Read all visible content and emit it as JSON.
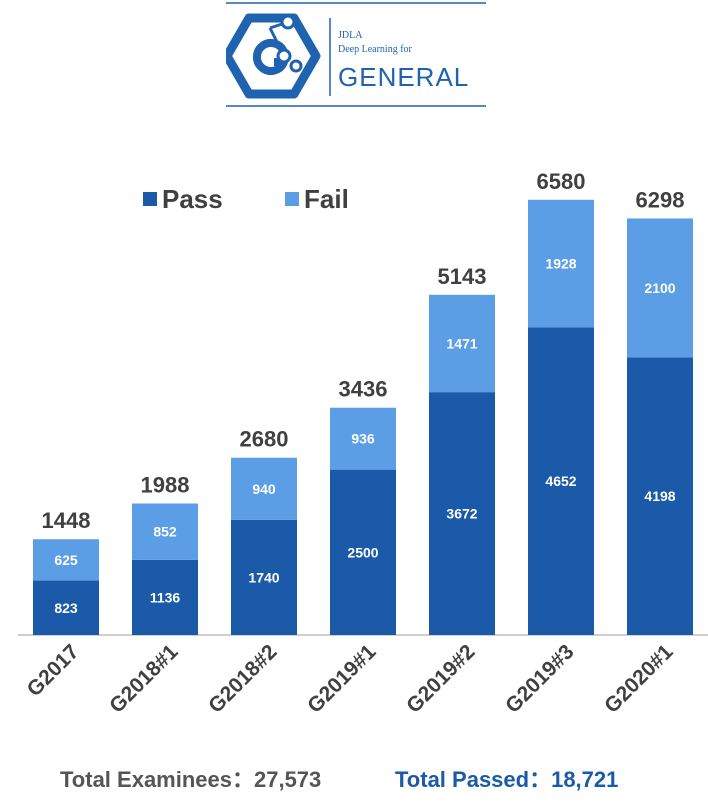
{
  "logo": {
    "line1": "JDLA",
    "line2": "Deep Learning for",
    "line3": "GENERAL",
    "icon": "hexagon-g-network-logo"
  },
  "colors": {
    "pass": "#1a5aa8",
    "fail": "#5b9ee6",
    "total_label": "#404040",
    "axis": "#bfbfbf",
    "footer_gray": "#555555",
    "footer_blue": "#1a5aa8",
    "logo_blue": "#1f63b0"
  },
  "chart_data": {
    "type": "bar",
    "stacked": true,
    "categories": [
      "G2017",
      "G2018#1",
      "G2018#2",
      "G2019#1",
      "G2019#2",
      "G2019#3",
      "G2020#1"
    ],
    "series": [
      {
        "name": "Pass",
        "values": [
          823,
          1136,
          1740,
          2500,
          3672,
          4652,
          4198
        ]
      },
      {
        "name": "Fail",
        "values": [
          625,
          852,
          940,
          936,
          1471,
          1928,
          2100
        ]
      }
    ],
    "totals": [
      1448,
      1988,
      2680,
      3436,
      5143,
      6580,
      6298
    ],
    "legend_position": "top-left",
    "grid": false,
    "ylim": [
      0,
      7000
    ]
  },
  "footer": {
    "total_examinees": "Total Examinees：27,573",
    "total_passed": "Total Passed：18,721"
  }
}
